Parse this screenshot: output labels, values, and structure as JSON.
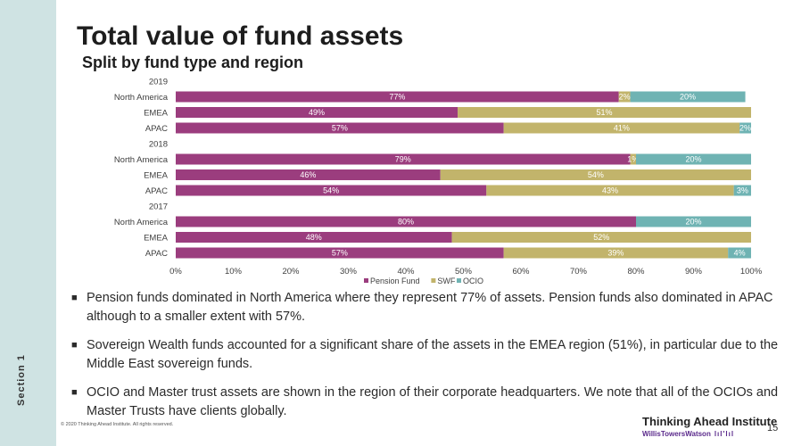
{
  "slide": {
    "title": "Total value of fund assets",
    "subtitle": "Split by fund type and region",
    "section": "Section 1",
    "copyright": "© 2020 Thinking Ahead Institute. All rights reserved.",
    "brand_primary": "Thinking Ahead Institute",
    "brand_secondary": "WillisTowersWatson",
    "brand_mark": "lıl'lıl",
    "page_number": "15",
    "bullets": [
      "Pension funds dominated in North America where they represent 77% of assets. Pension funds also dominated in APAC although to a smaller extent with 57%.",
      "Sovereign Wealth funds accounted for a significant share of the assets in the EMEA region (51%), in particular due to the Middle East sovereign funds.",
      "OCIO and Master trust assets are shown in the region of their corporate headquarters. We note that all of the OCIOs and Master Trusts have clients globally."
    ]
  },
  "chart_data": {
    "type": "bar",
    "orientation": "horizontal-stacked-100",
    "rows": [
      {
        "label": "2019",
        "group_header": true
      },
      {
        "label": "North America",
        "values": [
          77,
          2,
          20
        ],
        "labels": [
          "77%",
          "2%",
          "20%"
        ]
      },
      {
        "label": "EMEA",
        "values": [
          49,
          51,
          0
        ],
        "labels": [
          "49%",
          "51%",
          ""
        ]
      },
      {
        "label": "APAC",
        "values": [
          57,
          41,
          2
        ],
        "labels": [
          "57%",
          "41%",
          "2%"
        ]
      },
      {
        "label": "2018",
        "group_header": true
      },
      {
        "label": "North America",
        "values": [
          79,
          1,
          20
        ],
        "labels": [
          "79%",
          "1%",
          "20%"
        ]
      },
      {
        "label": "EMEA",
        "values": [
          46,
          54,
          0
        ],
        "labels": [
          "46%",
          "54%",
          ""
        ]
      },
      {
        "label": "APAC",
        "values": [
          54,
          43,
          3
        ],
        "labels": [
          "54%",
          "43%",
          "3%"
        ]
      },
      {
        "label": "2017",
        "group_header": true
      },
      {
        "label": "North America",
        "values": [
          80,
          0,
          20
        ],
        "labels": [
          "80%",
          "",
          "20%"
        ]
      },
      {
        "label": "EMEA",
        "values": [
          48,
          52,
          0
        ],
        "labels": [
          "48%",
          "52%",
          ""
        ]
      },
      {
        "label": "APAC",
        "values": [
          57,
          39,
          4
        ],
        "labels": [
          "57%",
          "39%",
          "4%"
        ]
      }
    ],
    "series": [
      {
        "name": "Pension Fund",
        "color": "#9b3d7e"
      },
      {
        "name": "SWF",
        "color": "#c2b46b"
      },
      {
        "name": "OCIO",
        "color": "#6fb3b3"
      }
    ],
    "x_ticks": [
      "0%",
      "10%",
      "20%",
      "30%",
      "40%",
      "50%",
      "60%",
      "70%",
      "80%",
      "90%",
      "100%"
    ],
    "xlim": [
      0,
      100
    ],
    "legend_position": "bottom",
    "grid": false
  }
}
